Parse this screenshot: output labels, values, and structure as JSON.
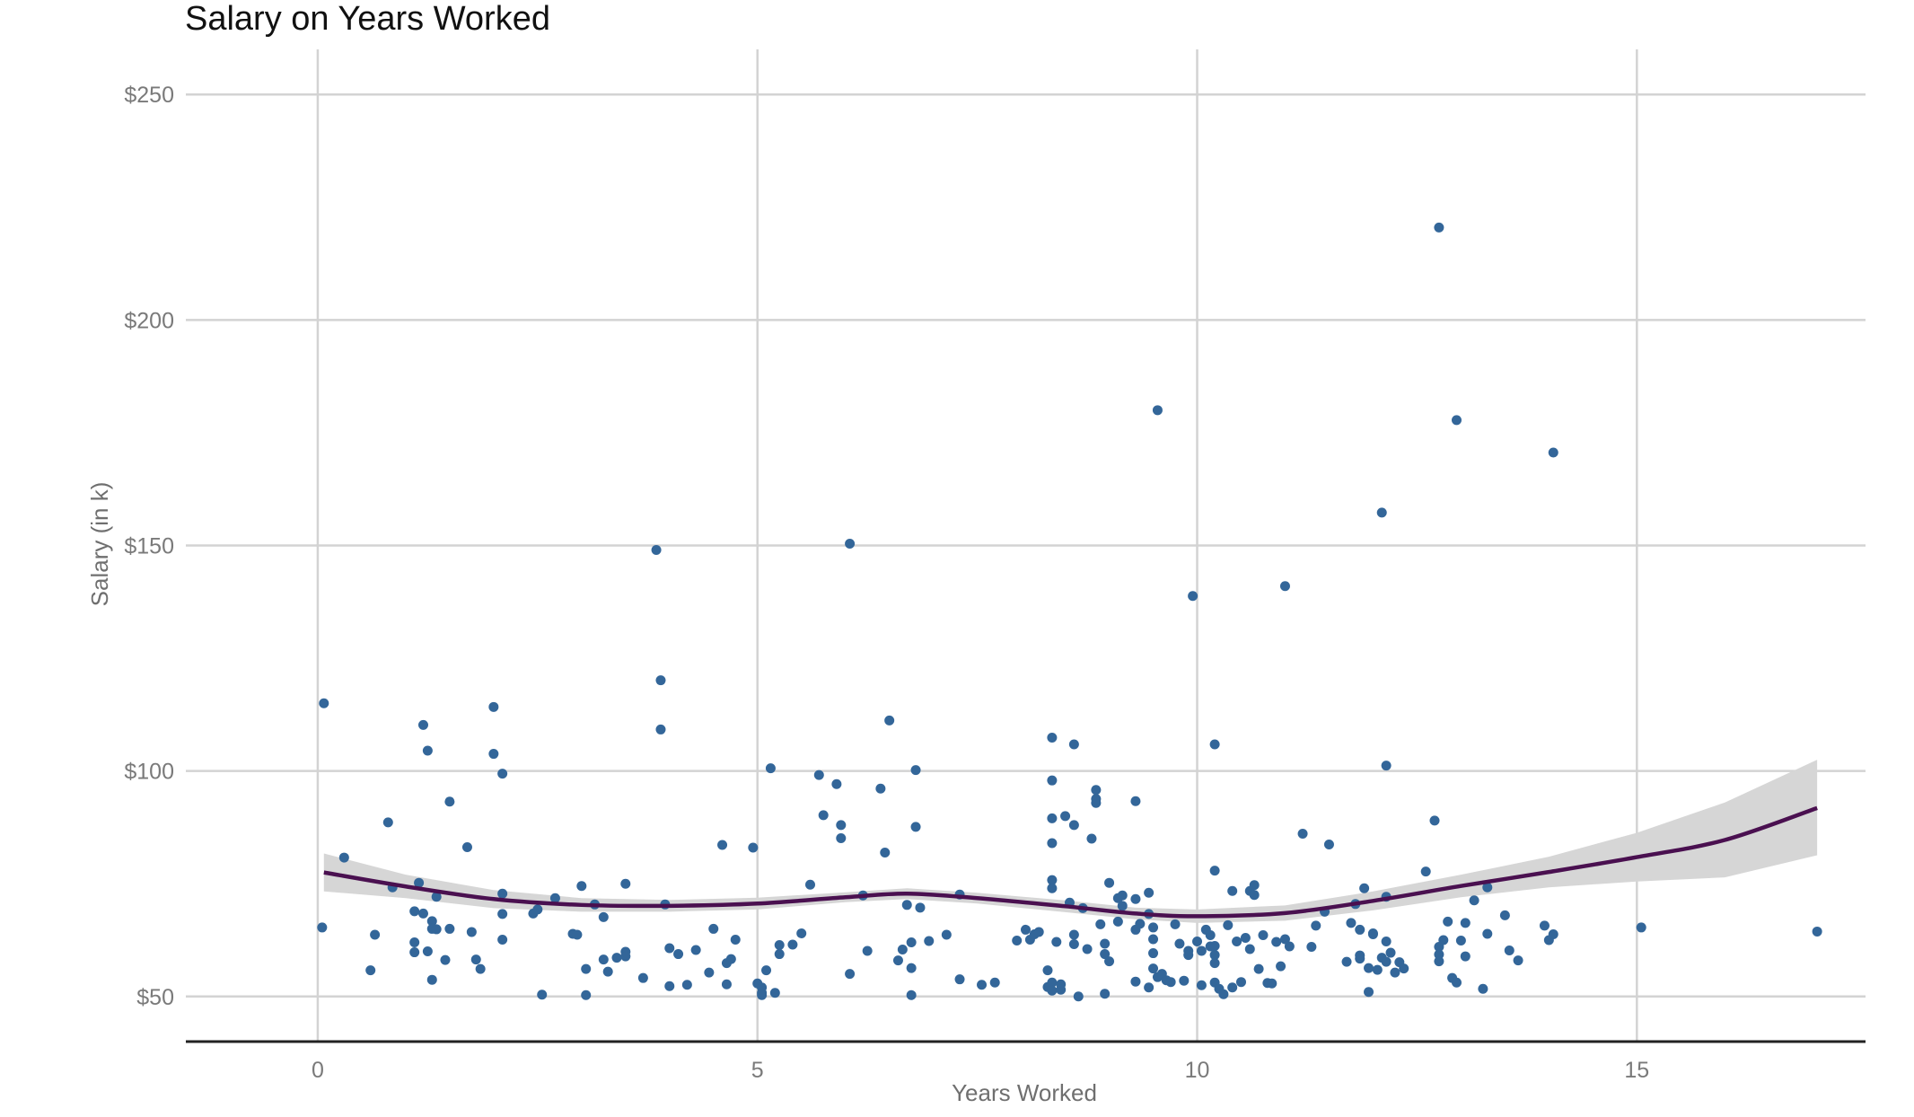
{
  "chart_data": {
    "type": "scatter",
    "title": "Salary on Years Worked",
    "xlabel": "Years Worked",
    "ylabel": "Salary (in k)",
    "xlim": [
      -1.5,
      17.6
    ],
    "ylim": [
      40,
      260
    ],
    "x_ticks": [
      {
        "value": 0,
        "label": "0"
      },
      {
        "value": 5,
        "label": "5"
      },
      {
        "value": 10,
        "label": "10"
      },
      {
        "value": 15,
        "label": "15"
      }
    ],
    "y_ticks": [
      {
        "value": 50,
        "label": "$50"
      },
      {
        "value": 100,
        "label": "$100"
      },
      {
        "value": 150,
        "label": "$150"
      },
      {
        "value": 200,
        "label": "$200"
      },
      {
        "value": 250,
        "label": "$250"
      }
    ],
    "grid": true,
    "colors": {
      "points": "#336699",
      "smooth_line": "#4a1050",
      "confidence_band": "#d6d6d6",
      "grid": "#d3d3d3",
      "axis_line": "#222222"
    },
    "points": [
      [
        0.07,
        115
      ],
      [
        0.05,
        65.3
      ],
      [
        0.3,
        80.8
      ],
      [
        0.6,
        55.8
      ],
      [
        0.65,
        63.7
      ],
      [
        0.8,
        88.6
      ],
      [
        0.85,
        74.2
      ],
      [
        1.1,
        62
      ],
      [
        1.1,
        68.9
      ],
      [
        1.15,
        75.2
      ],
      [
        1.2,
        68.4
      ],
      [
        1.1,
        59.8
      ],
      [
        1.25,
        60.0
      ],
      [
        1.2,
        110.2
      ],
      [
        1.25,
        104.5
      ],
      [
        1.3,
        53.7
      ],
      [
        1.3,
        66.7
      ],
      [
        1.3,
        65.0
      ],
      [
        1.35,
        72.1
      ],
      [
        1.35,
        64.9
      ],
      [
        1.45,
        58.1
      ],
      [
        1.5,
        65.0
      ],
      [
        1.5,
        93.2
      ],
      [
        1.7,
        83.1
      ],
      [
        1.75,
        64.3
      ],
      [
        1.8,
        58.2
      ],
      [
        1.85,
        56.1
      ],
      [
        2.0,
        114.2
      ],
      [
        2.0,
        103.8
      ],
      [
        2.1,
        99.4
      ],
      [
        2.1,
        72.8
      ],
      [
        2.1,
        68.3
      ],
      [
        2.1,
        62.6
      ],
      [
        2.45,
        68.4
      ],
      [
        2.5,
        69.3
      ],
      [
        2.55,
        50.4
      ],
      [
        2.7,
        71.8
      ],
      [
        2.9,
        63.9
      ],
      [
        2.95,
        63.7
      ],
      [
        3.0,
        74.5
      ],
      [
        3.05,
        56.1
      ],
      [
        3.05,
        50.3
      ],
      [
        3.15,
        70.4
      ],
      [
        3.25,
        67.6
      ],
      [
        3.25,
        58.2
      ],
      [
        3.3,
        55.5
      ],
      [
        3.4,
        58.6
      ],
      [
        3.5,
        59.9
      ],
      [
        3.5,
        58.9
      ],
      [
        3.5,
        75.0
      ],
      [
        3.7,
        54.1
      ],
      [
        3.85,
        149.0
      ],
      [
        3.9,
        120.1
      ],
      [
        3.9,
        109.2
      ],
      [
        3.95,
        70.4
      ],
      [
        4.0,
        60.7
      ],
      [
        4.0,
        52.3
      ],
      [
        4.1,
        59.4
      ],
      [
        4.2,
        52.6
      ],
      [
        4.3,
        60.3
      ],
      [
        4.45,
        55.3
      ],
      [
        4.5,
        65.0
      ],
      [
        4.6,
        83.6
      ],
      [
        4.65,
        57.4
      ],
      [
        4.65,
        52.7
      ],
      [
        4.7,
        58.3
      ],
      [
        4.75,
        62.6
      ],
      [
        4.95,
        83.0
      ],
      [
        5.0,
        52.9
      ],
      [
        5.05,
        52.0
      ],
      [
        5.05,
        50.8
      ],
      [
        5.05,
        50.3
      ],
      [
        5.1,
        55.8
      ],
      [
        5.15,
        100.6
      ],
      [
        5.2,
        50.8
      ],
      [
        5.25,
        59.4
      ],
      [
        5.25,
        61.4
      ],
      [
        5.4,
        61.5
      ],
      [
        5.5,
        64.0
      ],
      [
        5.6,
        74.8
      ],
      [
        5.7,
        99.1
      ],
      [
        5.75,
        90.2
      ],
      [
        5.9,
        97.1
      ],
      [
        5.95,
        88.0
      ],
      [
        5.95,
        85.1
      ],
      [
        6.05,
        55.0
      ],
      [
        6.05,
        150.4
      ],
      [
        6.2,
        72.4
      ],
      [
        6.25,
        60.1
      ],
      [
        6.4,
        96.1
      ],
      [
        6.45,
        81.9
      ],
      [
        6.5,
        111.2
      ],
      [
        6.6,
        58.0
      ],
      [
        6.65,
        60.4
      ],
      [
        6.7,
        70.3
      ],
      [
        6.75,
        62.0
      ],
      [
        6.75,
        56.3
      ],
      [
        6.75,
        50.3
      ],
      [
        6.8,
        100.2
      ],
      [
        6.8,
        87.6
      ],
      [
        6.85,
        69.7
      ],
      [
        6.95,
        62.3
      ],
      [
        7.15,
        63.7
      ],
      [
        7.3,
        72.6
      ],
      [
        7.3,
        53.8
      ],
      [
        7.55,
        52.6
      ],
      [
        7.7,
        53.1
      ],
      [
        7.95,
        62.4
      ],
      [
        8.05,
        64.8
      ],
      [
        8.1,
        62.6
      ],
      [
        8.15,
        63.8
      ],
      [
        8.2,
        64.3
      ],
      [
        8.3,
        55.8
      ],
      [
        8.35,
        107.4
      ],
      [
        8.35,
        97.9
      ],
      [
        8.35,
        89.5
      ],
      [
        8.35,
        84.0
      ],
      [
        8.35,
        75.8
      ],
      [
        8.35,
        74.0
      ],
      [
        8.3,
        52.1
      ],
      [
        8.35,
        53.1
      ],
      [
        8.35,
        51.3
      ],
      [
        8.4,
        62.1
      ],
      [
        8.45,
        52.7
      ],
      [
        8.45,
        51.5
      ],
      [
        8.5,
        90.0
      ],
      [
        8.55,
        70.8
      ],
      [
        8.6,
        88.0
      ],
      [
        8.6,
        105.9
      ],
      [
        8.6,
        63.7
      ],
      [
        8.6,
        61.6
      ],
      [
        8.65,
        50.0
      ],
      [
        8.7,
        69.6
      ],
      [
        8.75,
        60.5
      ],
      [
        8.8,
        85.0
      ],
      [
        8.85,
        95.8
      ],
      [
        8.85,
        92.9
      ],
      [
        8.85,
        93.8
      ],
      [
        8.95,
        50.6
      ],
      [
        8.9,
        66.0
      ],
      [
        8.95,
        61.7
      ],
      [
        8.95,
        59.4
      ],
      [
        9.0,
        57.8
      ],
      [
        9.0,
        75.2
      ],
      [
        9.1,
        71.8
      ],
      [
        9.1,
        66.6
      ],
      [
        9.15,
        72.4
      ],
      [
        9.15,
        70.1
      ],
      [
        9.3,
        53.3
      ],
      [
        9.3,
        64.8
      ],
      [
        9.3,
        93.3
      ],
      [
        9.3,
        71.6
      ],
      [
        9.35,
        66.1
      ],
      [
        9.45,
        73.0
      ],
      [
        9.45,
        68.3
      ],
      [
        9.5,
        56.2
      ],
      [
        9.5,
        59.6
      ],
      [
        9.45,
        52.0
      ],
      [
        9.5,
        65.3
      ],
      [
        9.5,
        62.7
      ],
      [
        9.55,
        54.3
      ],
      [
        9.55,
        180.0
      ],
      [
        9.6,
        55.0
      ],
      [
        9.65,
        53.6
      ],
      [
        9.7,
        53.2
      ],
      [
        9.75,
        66.0
      ],
      [
        9.8,
        61.7
      ],
      [
        9.85,
        53.5
      ],
      [
        9.9,
        60.1
      ],
      [
        9.9,
        59.2
      ],
      [
        9.95,
        138.8
      ],
      [
        10.0,
        62.2
      ],
      [
        10.05,
        52.5
      ],
      [
        10.05,
        60.1
      ],
      [
        10.1,
        64.8
      ],
      [
        10.15,
        63.6
      ],
      [
        10.15,
        61.1
      ],
      [
        10.2,
        77.9
      ],
      [
        10.2,
        105.9
      ],
      [
        10.2,
        61.2
      ],
      [
        10.2,
        59.2
      ],
      [
        10.2,
        57.4
      ],
      [
        10.2,
        53.1
      ],
      [
        10.25,
        51.7
      ],
      [
        10.3,
        50.5
      ],
      [
        10.35,
        65.8
      ],
      [
        10.4,
        73.4
      ],
      [
        10.4,
        52.0
      ],
      [
        10.45,
        62.2
      ],
      [
        10.5,
        53.2
      ],
      [
        10.55,
        63.0
      ],
      [
        10.6,
        60.5
      ],
      [
        10.6,
        73.4
      ],
      [
        10.65,
        74.7
      ],
      [
        10.65,
        72.5
      ],
      [
        10.7,
        56.1
      ],
      [
        10.75,
        63.6
      ],
      [
        10.8,
        53.0
      ],
      [
        10.85,
        52.9
      ],
      [
        10.9,
        62.1
      ],
      [
        10.95,
        56.7
      ],
      [
        11.0,
        141.0
      ],
      [
        11.0,
        62.7
      ],
      [
        11.05,
        61.1
      ],
      [
        11.2,
        86.1
      ],
      [
        11.3,
        61.0
      ],
      [
        11.35,
        65.7
      ],
      [
        11.45,
        68.8
      ],
      [
        11.5,
        83.7
      ],
      [
        11.7,
        57.7
      ],
      [
        11.75,
        66.3
      ],
      [
        11.8,
        70.5
      ],
      [
        11.85,
        64.8
      ],
      [
        11.85,
        58.4
      ],
      [
        11.85,
        59.1
      ],
      [
        11.9,
        74.0
      ],
      [
        11.95,
        51.0
      ],
      [
        11.95,
        56.3
      ],
      [
        12.0,
        64.0
      ],
      [
        12.0,
        63.8
      ],
      [
        12.05,
        55.9
      ],
      [
        12.1,
        157.3
      ],
      [
        12.1,
        58.6
      ],
      [
        12.15,
        101.2
      ],
      [
        12.15,
        72.1
      ],
      [
        12.15,
        62.2
      ],
      [
        12.15,
        57.7
      ],
      [
        12.2,
        59.7
      ],
      [
        12.25,
        55.3
      ],
      [
        12.3,
        57.6
      ],
      [
        12.35,
        56.2
      ],
      [
        12.6,
        77.7
      ],
      [
        12.7,
        89.0
      ],
      [
        12.75,
        61.0
      ],
      [
        12.75,
        59.3
      ],
      [
        12.75,
        57.8
      ],
      [
        12.8,
        62.5
      ],
      [
        12.85,
        66.6
      ],
      [
        12.9,
        54.1
      ],
      [
        12.95,
        53.1
      ],
      [
        12.95,
        177.8
      ],
      [
        13.0,
        62.4
      ],
      [
        13.05,
        58.9
      ],
      [
        13.05,
        66.3
      ],
      [
        13.15,
        71.3
      ],
      [
        13.25,
        51.7
      ],
      [
        13.3,
        74.2
      ],
      [
        13.3,
        63.9
      ],
      [
        13.5,
        68.0
      ],
      [
        13.55,
        60.2
      ],
      [
        13.65,
        58.0
      ],
      [
        13.95,
        65.7
      ],
      [
        14.0,
        62.5
      ],
      [
        12.75,
        220.5
      ],
      [
        14.05,
        170.6
      ],
      [
        14.05,
        63.8
      ],
      [
        15.05,
        65.3
      ],
      [
        17.05,
        64.4
      ]
    ],
    "smooth_line": [
      [
        0.07,
        77.5
      ],
      [
        1.0,
        74.4
      ],
      [
        2.0,
        71.6
      ],
      [
        3.0,
        70.3
      ],
      [
        4.0,
        70.1
      ],
      [
        5.0,
        70.6
      ],
      [
        6.0,
        72.0
      ],
      [
        6.7,
        72.8
      ],
      [
        7.5,
        71.8
      ],
      [
        8.5,
        70.0
      ],
      [
        9.3,
        68.4
      ],
      [
        10.0,
        67.8
      ],
      [
        11.0,
        68.5
      ],
      [
        12.0,
        71.2
      ],
      [
        13.0,
        74.5
      ],
      [
        14.0,
        77.6
      ],
      [
        15.0,
        80.9
      ],
      [
        16.0,
        84.7
      ],
      [
        17.05,
        91.8
      ]
    ],
    "band_upper": [
      [
        0.07,
        81.7
      ],
      [
        1.0,
        77.0
      ],
      [
        2.0,
        73.6
      ],
      [
        3.0,
        71.8
      ],
      [
        4.0,
        71.4
      ],
      [
        5.0,
        71.9
      ],
      [
        6.0,
        73.1
      ],
      [
        6.7,
        74.0
      ],
      [
        7.5,
        73.0
      ],
      [
        8.5,
        71.3
      ],
      [
        9.3,
        69.7
      ],
      [
        10.0,
        69.3
      ],
      [
        11.0,
        70.2
      ],
      [
        12.0,
        73.3
      ],
      [
        13.0,
        77.0
      ],
      [
        14.0,
        81.0
      ],
      [
        15.0,
        86.3
      ],
      [
        16.0,
        93.0
      ],
      [
        17.05,
        102.5
      ]
    ],
    "band_lower": [
      [
        0.07,
        73.3
      ],
      [
        1.0,
        71.8
      ],
      [
        2.0,
        69.6
      ],
      [
        3.0,
        68.8
      ],
      [
        4.0,
        68.8
      ],
      [
        5.0,
        69.3
      ],
      [
        6.0,
        70.9
      ],
      [
        6.7,
        71.6
      ],
      [
        7.5,
        70.6
      ],
      [
        8.5,
        68.7
      ],
      [
        9.3,
        67.1
      ],
      [
        10.0,
        66.3
      ],
      [
        11.0,
        66.8
      ],
      [
        12.0,
        69.1
      ],
      [
        13.0,
        72.0
      ],
      [
        14.0,
        74.2
      ],
      [
        15.0,
        75.5
      ],
      [
        16.0,
        76.4
      ],
      [
        17.05,
        81.3
      ]
    ]
  }
}
